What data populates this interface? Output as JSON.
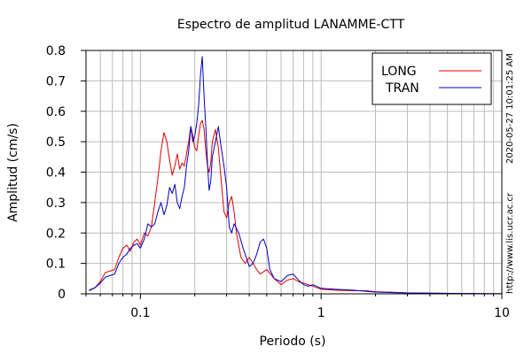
{
  "chart_data": {
    "type": "line",
    "title": "Espectro de amplitud LANAMME-CTT",
    "xlabel": "Periodo (s)",
    "ylabel": "Amplitud (cm/s)",
    "x_scale": "log",
    "xlim": [
      0.05,
      10
    ],
    "ylim": [
      0,
      0.8
    ],
    "grid": true,
    "legend_position": "top-right",
    "x_ticks": [
      {
        "value": 0.1,
        "label": "0.1"
      },
      {
        "value": 1,
        "label": "1"
      },
      {
        "value": 10,
        "label": "10"
      }
    ],
    "y_ticks": [
      {
        "value": 0,
        "label": "0"
      },
      {
        "value": 0.1,
        "label": "0.1"
      },
      {
        "value": 0.2,
        "label": "0.2"
      },
      {
        "value": 0.3,
        "label": "0.3"
      },
      {
        "value": 0.4,
        "label": "0.4"
      },
      {
        "value": 0.5,
        "label": "0.5"
      },
      {
        "value": 0.6,
        "label": "0.6"
      },
      {
        "value": 0.7,
        "label": "0.7"
      },
      {
        "value": 0.8,
        "label": "0.8"
      }
    ],
    "series": [
      {
        "name": "LONG",
        "color": "#e00000",
        "points": [
          [
            0.052,
            0.01
          ],
          [
            0.056,
            0.02
          ],
          [
            0.06,
            0.04
          ],
          [
            0.064,
            0.07
          ],
          [
            0.068,
            0.075
          ],
          [
            0.072,
            0.08
          ],
          [
            0.076,
            0.12
          ],
          [
            0.08,
            0.15
          ],
          [
            0.084,
            0.16
          ],
          [
            0.088,
            0.14
          ],
          [
            0.092,
            0.17
          ],
          [
            0.096,
            0.18
          ],
          [
            0.1,
            0.16
          ],
          [
            0.105,
            0.2
          ],
          [
            0.11,
            0.19
          ],
          [
            0.115,
            0.22
          ],
          [
            0.12,
            0.3
          ],
          [
            0.125,
            0.38
          ],
          [
            0.13,
            0.47
          ],
          [
            0.135,
            0.53
          ],
          [
            0.14,
            0.5
          ],
          [
            0.145,
            0.44
          ],
          [
            0.15,
            0.39
          ],
          [
            0.155,
            0.42
          ],
          [
            0.16,
            0.46
          ],
          [
            0.165,
            0.41
          ],
          [
            0.17,
            0.43
          ],
          [
            0.175,
            0.42
          ],
          [
            0.18,
            0.46
          ],
          [
            0.185,
            0.5
          ],
          [
            0.19,
            0.55
          ],
          [
            0.195,
            0.52
          ],
          [
            0.2,
            0.48
          ],
          [
            0.205,
            0.47
          ],
          [
            0.21,
            0.52
          ],
          [
            0.215,
            0.56
          ],
          [
            0.22,
            0.57
          ],
          [
            0.225,
            0.54
          ],
          [
            0.23,
            0.47
          ],
          [
            0.235,
            0.42
          ],
          [
            0.24,
            0.4
          ],
          [
            0.245,
            0.43
          ],
          [
            0.25,
            0.5
          ],
          [
            0.26,
            0.54
          ],
          [
            0.27,
            0.48
          ],
          [
            0.28,
            0.37
          ],
          [
            0.29,
            0.27
          ],
          [
            0.3,
            0.25
          ],
          [
            0.31,
            0.3
          ],
          [
            0.32,
            0.32
          ],
          [
            0.33,
            0.27
          ],
          [
            0.34,
            0.2
          ],
          [
            0.36,
            0.12
          ],
          [
            0.38,
            0.1
          ],
          [
            0.4,
            0.12
          ],
          [
            0.42,
            0.1
          ],
          [
            0.44,
            0.08
          ],
          [
            0.46,
            0.065
          ],
          [
            0.5,
            0.08
          ],
          [
            0.55,
            0.05
          ],
          [
            0.6,
            0.03
          ],
          [
            0.65,
            0.045
          ],
          [
            0.7,
            0.05
          ],
          [
            0.75,
            0.04
          ],
          [
            0.8,
            0.035
          ],
          [
            0.85,
            0.03
          ],
          [
            0.9,
            0.025
          ],
          [
            1.0,
            0.015
          ],
          [
            1.2,
            0.012
          ],
          [
            1.5,
            0.01
          ],
          [
            1.8,
            0.01
          ],
          [
            2.0,
            0.007
          ],
          [
            2.5,
            0.005
          ],
          [
            3.0,
            0.003
          ],
          [
            4.0,
            0.002
          ],
          [
            6.0,
            0.001
          ],
          [
            10.0,
            0.0005
          ]
        ]
      },
      {
        "name": "TRAN",
        "color": "#0000c0",
        "points": [
          [
            0.052,
            0.012
          ],
          [
            0.056,
            0.02
          ],
          [
            0.06,
            0.035
          ],
          [
            0.064,
            0.055
          ],
          [
            0.068,
            0.06
          ],
          [
            0.072,
            0.065
          ],
          [
            0.076,
            0.1
          ],
          [
            0.08,
            0.12
          ],
          [
            0.084,
            0.13
          ],
          [
            0.088,
            0.15
          ],
          [
            0.092,
            0.16
          ],
          [
            0.096,
            0.165
          ],
          [
            0.1,
            0.15
          ],
          [
            0.105,
            0.18
          ],
          [
            0.11,
            0.23
          ],
          [
            0.115,
            0.22
          ],
          [
            0.12,
            0.23
          ],
          [
            0.125,
            0.27
          ],
          [
            0.13,
            0.3
          ],
          [
            0.135,
            0.26
          ],
          [
            0.14,
            0.29
          ],
          [
            0.145,
            0.35
          ],
          [
            0.15,
            0.33
          ],
          [
            0.155,
            0.36
          ],
          [
            0.16,
            0.3
          ],
          [
            0.165,
            0.28
          ],
          [
            0.17,
            0.32
          ],
          [
            0.175,
            0.35
          ],
          [
            0.18,
            0.42
          ],
          [
            0.185,
            0.47
          ],
          [
            0.19,
            0.55
          ],
          [
            0.195,
            0.5
          ],
          [
            0.2,
            0.52
          ],
          [
            0.205,
            0.56
          ],
          [
            0.21,
            0.62
          ],
          [
            0.215,
            0.72
          ],
          [
            0.22,
            0.78
          ],
          [
            0.225,
            0.65
          ],
          [
            0.23,
            0.55
          ],
          [
            0.235,
            0.43
          ],
          [
            0.24,
            0.34
          ],
          [
            0.245,
            0.37
          ],
          [
            0.25,
            0.45
          ],
          [
            0.26,
            0.5
          ],
          [
            0.27,
            0.55
          ],
          [
            0.28,
            0.48
          ],
          [
            0.29,
            0.42
          ],
          [
            0.3,
            0.35
          ],
          [
            0.31,
            0.22
          ],
          [
            0.32,
            0.2
          ],
          [
            0.33,
            0.23
          ],
          [
            0.35,
            0.2
          ],
          [
            0.37,
            0.15
          ],
          [
            0.4,
            0.09
          ],
          [
            0.42,
            0.1
          ],
          [
            0.44,
            0.13
          ],
          [
            0.46,
            0.17
          ],
          [
            0.48,
            0.18
          ],
          [
            0.5,
            0.15
          ],
          [
            0.52,
            0.08
          ],
          [
            0.55,
            0.05
          ],
          [
            0.6,
            0.04
          ],
          [
            0.65,
            0.06
          ],
          [
            0.7,
            0.065
          ],
          [
            0.75,
            0.045
          ],
          [
            0.8,
            0.03
          ],
          [
            0.85,
            0.025
          ],
          [
            0.9,
            0.03
          ],
          [
            1.0,
            0.018
          ],
          [
            1.2,
            0.015
          ],
          [
            1.5,
            0.012
          ],
          [
            1.8,
            0.008
          ],
          [
            2.0,
            0.006
          ],
          [
            2.5,
            0.004
          ],
          [
            3.0,
            0.003
          ],
          [
            4.0,
            0.002
          ],
          [
            6.0,
            0.001
          ],
          [
            10.0,
            0.0005
          ]
        ]
      }
    ]
  },
  "side_texts": {
    "timestamp": "2020-05-27 10:01:25 AM",
    "url": "http://www.lis.ucr.ac.cr"
  }
}
